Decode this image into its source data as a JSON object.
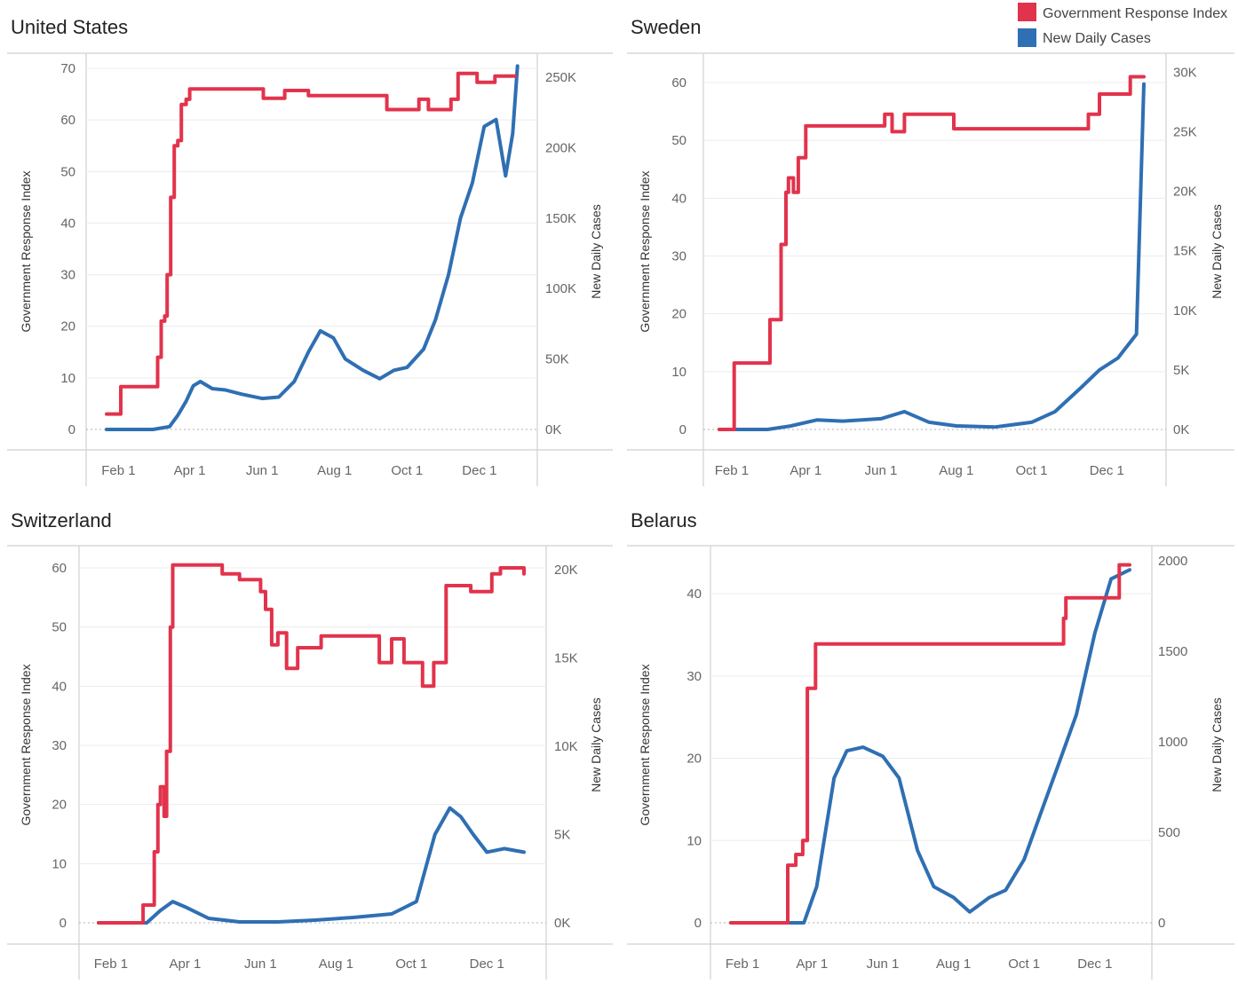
{
  "legend": {
    "position": "top-right",
    "items": [
      {
        "label": "Government Response Index",
        "color": "#e2334c"
      },
      {
        "label": "New Daily Cases",
        "color": "#2f6fb3"
      }
    ]
  },
  "chart_data": [
    {
      "type": "line",
      "title": "United States",
      "ylabel": "Government Response Index",
      "y2label": "New Daily Cases",
      "xticks": [
        "Feb 1",
        "Apr 1",
        "Jun 1",
        "Aug 1",
        "Oct 1",
        "Dec 1"
      ],
      "y_ticks": [
        0,
        10,
        20,
        30,
        40,
        50,
        60,
        70
      ],
      "ylim": [
        0,
        70
      ],
      "y2_ticks": [
        0,
        50000,
        100000,
        150000,
        200000,
        250000
      ],
      "y2_tick_labels": [
        "0K",
        "50K",
        "100K",
        "150K",
        "200K",
        "250K"
      ],
      "y2lim": [
        0,
        262000
      ],
      "grid": true,
      "series": [
        {
          "name": "Government Response Index",
          "color": "#e2334c",
          "axis": "left",
          "points": [
            [
              "2020-01-22",
              3
            ],
            [
              "2020-01-31",
              3
            ],
            [
              "2020-02-03",
              8.3
            ],
            [
              "2020-03-01",
              8.3
            ],
            [
              "2020-03-05",
              14
            ],
            [
              "2020-03-08",
              21
            ],
            [
              "2020-03-11",
              22
            ],
            [
              "2020-03-13",
              30
            ],
            [
              "2020-03-16",
              45
            ],
            [
              "2020-03-19",
              55
            ],
            [
              "2020-03-22",
              56
            ],
            [
              "2020-03-25",
              63
            ],
            [
              "2020-03-29",
              64
            ],
            [
              "2020-04-01",
              66
            ],
            [
              "2020-06-01",
              66
            ],
            [
              "2020-06-02",
              64.2
            ],
            [
              "2020-06-20",
              65.7
            ],
            [
              "2020-07-10",
              64.7
            ],
            [
              "2020-09-14",
              62
            ],
            [
              "2020-10-11",
              64
            ],
            [
              "2020-10-19",
              62
            ],
            [
              "2020-11-07",
              64
            ],
            [
              "2020-11-13",
              69
            ],
            [
              "2020-11-29",
              67.3
            ],
            [
              "2020-12-14",
              68.5
            ],
            [
              "2020-12-31",
              68.5
            ]
          ]
        },
        {
          "name": "New Daily Cases",
          "color": "#2f6fb3",
          "axis": "right",
          "points": [
            [
              "2020-01-22",
              0
            ],
            [
              "2020-03-01",
              0
            ],
            [
              "2020-03-15",
              2000
            ],
            [
              "2020-03-22",
              10000
            ],
            [
              "2020-03-29",
              20000
            ],
            [
              "2020-04-04",
              31000
            ],
            [
              "2020-04-10",
              34000
            ],
            [
              "2020-04-20",
              29000
            ],
            [
              "2020-05-01",
              28000
            ],
            [
              "2020-05-15",
              25000
            ],
            [
              "2020-06-01",
              22000
            ],
            [
              "2020-06-15",
              23000
            ],
            [
              "2020-06-28",
              34000
            ],
            [
              "2020-07-10",
              55000
            ],
            [
              "2020-07-20",
              70000
            ],
            [
              "2020-07-31",
              65000
            ],
            [
              "2020-08-10",
              50000
            ],
            [
              "2020-08-25",
              42000
            ],
            [
              "2020-09-08",
              36000
            ],
            [
              "2020-09-20",
              42000
            ],
            [
              "2020-10-01",
              44000
            ],
            [
              "2020-10-15",
              57000
            ],
            [
              "2020-10-25",
              78000
            ],
            [
              "2020-11-05",
              110000
            ],
            [
              "2020-11-15",
              150000
            ],
            [
              "2020-11-25",
              175000
            ],
            [
              "2020-12-05",
              215000
            ],
            [
              "2020-12-15",
              220000
            ],
            [
              "2020-12-23",
              180000
            ],
            [
              "2020-12-29",
              210000
            ],
            [
              "2021-01-02",
              258000
            ]
          ]
        }
      ]
    },
    {
      "type": "line",
      "title": "Sweden",
      "ylabel": "Government Response Index",
      "y2label": "New Daily Cases",
      "xticks": [
        "Feb 1",
        "Apr 1",
        "Jun 1",
        "Aug 1",
        "Oct 1",
        "Dec 1"
      ],
      "y_ticks": [
        0,
        10,
        20,
        30,
        40,
        50,
        60
      ],
      "ylim": [
        0,
        60
      ],
      "y2_ticks": [
        0,
        5000,
        10000,
        15000,
        20000,
        25000,
        30000
      ],
      "y2_tick_labels": [
        "0K",
        "5K",
        "10K",
        "15K",
        "20K",
        "25K",
        "30K"
      ],
      "y2lim": [
        0,
        29500
      ],
      "grid": true,
      "series": [
        {
          "name": "Government Response Index",
          "color": "#e2334c",
          "axis": "left",
          "points": [
            [
              "2020-01-22",
              0
            ],
            [
              "2020-02-01",
              0
            ],
            [
              "2020-02-03",
              11.5
            ],
            [
              "2020-03-01",
              11.5
            ],
            [
              "2020-03-03",
              19
            ],
            [
              "2020-03-10",
              19
            ],
            [
              "2020-03-12",
              32
            ],
            [
              "2020-03-16",
              41
            ],
            [
              "2020-03-18",
              43.5
            ],
            [
              "2020-03-22",
              41
            ],
            [
              "2020-03-26",
              47
            ],
            [
              "2020-04-01",
              52.5
            ],
            [
              "2020-06-01",
              52.5
            ],
            [
              "2020-06-04",
              54.5
            ],
            [
              "2020-06-10",
              51.5
            ],
            [
              "2020-06-20",
              54.5
            ],
            [
              "2020-07-30",
              52
            ],
            [
              "2020-11-12",
              52
            ],
            [
              "2020-11-16",
              54.5
            ],
            [
              "2020-11-25",
              58
            ],
            [
              "2020-12-20",
              61
            ],
            [
              "2020-12-31",
              61
            ]
          ]
        },
        {
          "name": "New Daily Cases",
          "color": "#2f6fb3",
          "axis": "right",
          "points": [
            [
              "2020-01-22",
              0
            ],
            [
              "2020-03-01",
              0
            ],
            [
              "2020-03-20",
              300
            ],
            [
              "2020-04-10",
              800
            ],
            [
              "2020-05-01",
              700
            ],
            [
              "2020-06-01",
              900
            ],
            [
              "2020-06-20",
              1500
            ],
            [
              "2020-07-10",
              600
            ],
            [
              "2020-08-01",
              300
            ],
            [
              "2020-09-01",
              200
            ],
            [
              "2020-10-01",
              600
            ],
            [
              "2020-10-20",
              1500
            ],
            [
              "2020-11-10",
              3500
            ],
            [
              "2020-11-25",
              5000
            ],
            [
              "2020-12-10",
              6000
            ],
            [
              "2020-12-25",
              8000
            ],
            [
              "2020-12-31",
              29000
            ]
          ]
        }
      ]
    },
    {
      "type": "line",
      "title": "Switzerland",
      "ylabel": "Government Response Index",
      "y2label": "New Daily Cases",
      "xticks": [
        "Feb 1",
        "Apr 1",
        "Jun 1",
        "Aug 1",
        "Oct 1",
        "Dec 1"
      ],
      "y_ticks": [
        0,
        10,
        20,
        30,
        40,
        50,
        60
      ],
      "ylim": [
        0,
        60
      ],
      "y2_ticks": [
        0,
        5000,
        10000,
        15000,
        20000
      ],
      "y2_tick_labels": [
        "0K",
        "5K",
        "10K",
        "15K",
        "20K"
      ],
      "y2lim": [
        0,
        20300
      ],
      "grid": true,
      "series": [
        {
          "name": "Government Response Index",
          "color": "#e2334c",
          "axis": "left",
          "points": [
            [
              "2020-01-22",
              0
            ],
            [
              "2020-02-25",
              0
            ],
            [
              "2020-02-27",
              3
            ],
            [
              "2020-03-05",
              3
            ],
            [
              "2020-03-07",
              12
            ],
            [
              "2020-03-10",
              20
            ],
            [
              "2020-03-12",
              23
            ],
            [
              "2020-03-15",
              18
            ],
            [
              "2020-03-17",
              29
            ],
            [
              "2020-03-20",
              50
            ],
            [
              "2020-03-22",
              60.5
            ],
            [
              "2020-04-27",
              60.5
            ],
            [
              "2020-05-01",
              59
            ],
            [
              "2020-05-15",
              58
            ],
            [
              "2020-06-01",
              56
            ],
            [
              "2020-06-05",
              53
            ],
            [
              "2020-06-10",
              47
            ],
            [
              "2020-06-15",
              49
            ],
            [
              "2020-06-22",
              43
            ],
            [
              "2020-07-01",
              46.5
            ],
            [
              "2020-07-20",
              48.5
            ],
            [
              "2020-09-05",
              44
            ],
            [
              "2020-09-15",
              48
            ],
            [
              "2020-09-25",
              44
            ],
            [
              "2020-10-10",
              40
            ],
            [
              "2020-10-19",
              44
            ],
            [
              "2020-10-29",
              57
            ],
            [
              "2020-11-18",
              56
            ],
            [
              "2020-12-05",
              59
            ],
            [
              "2020-12-12",
              60
            ],
            [
              "2020-12-31",
              59
            ]
          ]
        },
        {
          "name": "New Daily Cases",
          "color": "#2f6fb3",
          "axis": "right",
          "points": [
            [
              "2020-01-22",
              0
            ],
            [
              "2020-03-01",
              0
            ],
            [
              "2020-03-12",
              700
            ],
            [
              "2020-03-22",
              1200
            ],
            [
              "2020-04-01",
              900
            ],
            [
              "2020-04-20",
              250
            ],
            [
              "2020-05-15",
              50
            ],
            [
              "2020-06-15",
              50
            ],
            [
              "2020-07-15",
              150
            ],
            [
              "2020-08-15",
              300
            ],
            [
              "2020-09-15",
              500
            ],
            [
              "2020-10-05",
              1200
            ],
            [
              "2020-10-20",
              5000
            ],
            [
              "2020-11-01",
              6500
            ],
            [
              "2020-11-10",
              6000
            ],
            [
              "2020-11-20",
              5000
            ],
            [
              "2020-12-01",
              4000
            ],
            [
              "2020-12-15",
              4200
            ],
            [
              "2020-12-31",
              4000
            ]
          ]
        }
      ]
    },
    {
      "type": "line",
      "title": "Belarus",
      "ylabel": "Government Response Index",
      "y2label": "New Daily Cases",
      "xticks": [
        "Feb 1",
        "Apr 1",
        "Jun 1",
        "Aug 1",
        "Oct 1",
        "Dec 1"
      ],
      "y_ticks": [
        0,
        10,
        20,
        30,
        40
      ],
      "ylim": [
        0,
        44
      ],
      "y2_ticks": [
        0,
        500,
        1000,
        1500,
        2000
      ],
      "y2_tick_labels": [
        "0",
        "500",
        "1000",
        "1500",
        "2000"
      ],
      "y2lim": [
        0,
        2000
      ],
      "grid": true,
      "series": [
        {
          "name": "Government Response Index",
          "color": "#e2334c",
          "axis": "left",
          "points": [
            [
              "2020-01-22",
              0
            ],
            [
              "2020-03-10",
              0
            ],
            [
              "2020-03-11",
              7
            ],
            [
              "2020-03-18",
              8.3
            ],
            [
              "2020-03-24",
              10
            ],
            [
              "2020-03-28",
              28.5
            ],
            [
              "2020-04-04",
              33.9
            ],
            [
              "2020-10-31",
              33.9
            ],
            [
              "2020-11-04",
              37
            ],
            [
              "2020-11-06",
              39.5
            ],
            [
              "2020-12-19",
              39.5
            ],
            [
              "2020-12-22",
              43.5
            ],
            [
              "2020-12-31",
              43.5
            ]
          ]
        },
        {
          "name": "New Daily Cases",
          "color": "#2f6fb3",
          "axis": "right",
          "points": [
            [
              "2020-01-22",
              0
            ],
            [
              "2020-03-25",
              0
            ],
            [
              "2020-04-05",
              200
            ],
            [
              "2020-04-20",
              800
            ],
            [
              "2020-05-01",
              950
            ],
            [
              "2020-05-15",
              970
            ],
            [
              "2020-06-01",
              920
            ],
            [
              "2020-06-15",
              800
            ],
            [
              "2020-07-01",
              400
            ],
            [
              "2020-07-15",
              200
            ],
            [
              "2020-08-01",
              140
            ],
            [
              "2020-08-15",
              60
            ],
            [
              "2020-09-01",
              140
            ],
            [
              "2020-09-15",
              180
            ],
            [
              "2020-10-01",
              350
            ],
            [
              "2020-10-15",
              600
            ],
            [
              "2020-11-01",
              900
            ],
            [
              "2020-11-15",
              1150
            ],
            [
              "2020-12-01",
              1600
            ],
            [
              "2020-12-15",
              1900
            ],
            [
              "2020-12-31",
              1950
            ]
          ]
        }
      ]
    }
  ]
}
